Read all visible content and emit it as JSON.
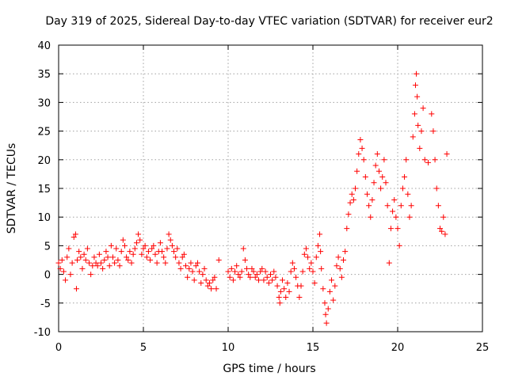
{
  "chart_data": {
    "type": "scatter",
    "title": "Day 319 of 2025, Sidereal Day-to-day VTEC variation (SDTVAR) for receiver eur2",
    "xlabel": "GPS time / hours",
    "ylabel": "SDTVAR / TECUs",
    "xlim": [
      0,
      25
    ],
    "ylim": [
      -10,
      40
    ],
    "xticks": [
      "0",
      "5",
      "10",
      "15",
      "20",
      "25"
    ],
    "yticks": [
      "-10",
      "-5",
      "0",
      "5",
      "10",
      "15",
      "20",
      "25",
      "30",
      "35",
      "40"
    ],
    "grid": true,
    "marker": "+",
    "color": "#ff0000",
    "series": [
      {
        "name": "eur2",
        "points": [
          [
            0.0,
            2.0
          ],
          [
            0.1,
            1.0
          ],
          [
            0.2,
            2.5
          ],
          [
            0.3,
            0.5
          ],
          [
            0.4,
            -1.0
          ],
          [
            0.5,
            3.0
          ],
          [
            0.6,
            4.5
          ],
          [
            0.7,
            0.0
          ],
          [
            0.8,
            2.0
          ],
          [
            0.9,
            6.5
          ],
          [
            1.0,
            7.0
          ],
          [
            1.05,
            -2.5
          ],
          [
            1.1,
            2.5
          ],
          [
            1.2,
            4.0
          ],
          [
            1.3,
            3.0
          ],
          [
            1.4,
            1.0
          ],
          [
            1.5,
            3.5
          ],
          [
            1.6,
            2.5
          ],
          [
            1.7,
            4.5
          ],
          [
            1.8,
            2.0
          ],
          [
            1.9,
            0.0
          ],
          [
            2.0,
            1.5
          ],
          [
            2.1,
            3.0
          ],
          [
            2.2,
            2.0
          ],
          [
            2.3,
            1.5
          ],
          [
            2.4,
            3.5
          ],
          [
            2.5,
            2.0
          ],
          [
            2.6,
            1.0
          ],
          [
            2.7,
            2.5
          ],
          [
            2.8,
            4.0
          ],
          [
            2.9,
            3.0
          ],
          [
            3.0,
            1.5
          ],
          [
            3.1,
            5.0
          ],
          [
            3.2,
            3.0
          ],
          [
            3.3,
            2.0
          ],
          [
            3.4,
            4.5
          ],
          [
            3.5,
            2.5
          ],
          [
            3.6,
            1.5
          ],
          [
            3.7,
            4.0
          ],
          [
            3.8,
            6.0
          ],
          [
            3.9,
            5.0
          ],
          [
            4.0,
            3.0
          ],
          [
            4.1,
            2.5
          ],
          [
            4.2,
            4.0
          ],
          [
            4.3,
            2.0
          ],
          [
            4.4,
            3.5
          ],
          [
            4.5,
            4.5
          ],
          [
            4.6,
            5.5
          ],
          [
            4.7,
            7.0
          ],
          [
            4.8,
            6.0
          ],
          [
            4.9,
            3.5
          ],
          [
            5.0,
            4.5
          ],
          [
            5.1,
            5.0
          ],
          [
            5.2,
            3.0
          ],
          [
            5.3,
            4.0
          ],
          [
            5.4,
            2.5
          ],
          [
            5.5,
            4.5
          ],
          [
            5.6,
            5.0
          ],
          [
            5.7,
            3.5
          ],
          [
            5.8,
            2.0
          ],
          [
            5.9,
            4.0
          ],
          [
            6.0,
            5.5
          ],
          [
            6.1,
            4.0
          ],
          [
            6.2,
            3.0
          ],
          [
            6.3,
            2.0
          ],
          [
            6.4,
            4.5
          ],
          [
            6.5,
            7.0
          ],
          [
            6.6,
            6.0
          ],
          [
            6.7,
            5.0
          ],
          [
            6.8,
            4.0
          ],
          [
            6.9,
            3.0
          ],
          [
            7.0,
            4.5
          ],
          [
            7.1,
            2.0
          ],
          [
            7.2,
            1.0
          ],
          [
            7.3,
            3.0
          ],
          [
            7.4,
            3.5
          ],
          [
            7.5,
            1.5
          ],
          [
            7.6,
            -0.5
          ],
          [
            7.7,
            1.0
          ],
          [
            7.8,
            2.0
          ],
          [
            7.9,
            0.5
          ],
          [
            8.0,
            -1.0
          ],
          [
            8.1,
            1.5
          ],
          [
            8.2,
            2.0
          ],
          [
            8.3,
            0.5
          ],
          [
            8.4,
            -1.5
          ],
          [
            8.5,
            0.0
          ],
          [
            8.6,
            1.0
          ],
          [
            8.7,
            -1.0
          ],
          [
            8.8,
            -2.0
          ],
          [
            8.9,
            -1.5
          ],
          [
            9.0,
            -2.5
          ],
          [
            9.1,
            -1.0
          ],
          [
            9.2,
            -0.5
          ],
          [
            9.3,
            -2.5
          ],
          [
            9.45,
            2.5
          ],
          [
            10.0,
            0.5
          ],
          [
            10.1,
            -0.5
          ],
          [
            10.2,
            1.0
          ],
          [
            10.3,
            -1.0
          ],
          [
            10.4,
            0.5
          ],
          [
            10.5,
            1.5
          ],
          [
            10.6,
            0.0
          ],
          [
            10.7,
            -0.5
          ],
          [
            10.8,
            0.5
          ],
          [
            10.9,
            4.5
          ],
          [
            11.0,
            2.5
          ],
          [
            11.1,
            1.0
          ],
          [
            11.2,
            0.0
          ],
          [
            11.3,
            -0.5
          ],
          [
            11.4,
            1.0
          ],
          [
            11.5,
            0.5
          ],
          [
            11.6,
            -0.5
          ],
          [
            11.7,
            0.0
          ],
          [
            11.8,
            -1.0
          ],
          [
            11.9,
            0.5
          ],
          [
            12.0,
            1.0
          ],
          [
            12.1,
            -1.0
          ],
          [
            12.2,
            0.5
          ],
          [
            12.3,
            -0.5
          ],
          [
            12.4,
            -1.5
          ],
          [
            12.5,
            0.0
          ],
          [
            12.6,
            -1.0
          ],
          [
            12.7,
            0.5
          ],
          [
            12.8,
            -0.5
          ],
          [
            12.9,
            -2.0
          ],
          [
            13.0,
            -4.0
          ],
          [
            13.05,
            -5.0
          ],
          [
            13.1,
            -3.0
          ],
          [
            13.2,
            -1.0
          ],
          [
            13.3,
            -2.5
          ],
          [
            13.4,
            -4.0
          ],
          [
            13.5,
            -1.5
          ],
          [
            13.6,
            -3.0
          ],
          [
            13.7,
            0.5
          ],
          [
            13.8,
            2.0
          ],
          [
            13.9,
            1.0
          ],
          [
            14.0,
            -0.5
          ],
          [
            14.1,
            -2.0
          ],
          [
            14.2,
            -4.0
          ],
          [
            14.3,
            -2.0
          ],
          [
            14.4,
            0.5
          ],
          [
            14.5,
            3.5
          ],
          [
            14.6,
            4.5
          ],
          [
            14.7,
            3.0
          ],
          [
            14.8,
            1.0
          ],
          [
            14.9,
            2.0
          ],
          [
            15.0,
            0.5
          ],
          [
            15.1,
            -1.5
          ],
          [
            15.2,
            3.0
          ],
          [
            15.3,
            5.0
          ],
          [
            15.4,
            7.0
          ],
          [
            15.45,
            4.0
          ],
          [
            15.5,
            1.0
          ],
          [
            15.6,
            -2.5
          ],
          [
            15.7,
            -5.0
          ],
          [
            15.75,
            -7.0
          ],
          [
            15.8,
            -8.5
          ],
          [
            15.9,
            -6.0
          ],
          [
            16.0,
            -3.0
          ],
          [
            16.1,
            -1.0
          ],
          [
            16.2,
            -4.5
          ],
          [
            16.3,
            -2.0
          ],
          [
            16.4,
            1.5
          ],
          [
            16.5,
            3.0
          ],
          [
            16.6,
            1.0
          ],
          [
            16.7,
            -0.5
          ],
          [
            16.8,
            2.5
          ],
          [
            16.9,
            4.0
          ],
          [
            17.0,
            8.0
          ],
          [
            17.1,
            10.5
          ],
          [
            17.2,
            12.5
          ],
          [
            17.3,
            14.0
          ],
          [
            17.4,
            13.0
          ],
          [
            17.5,
            15.0
          ],
          [
            17.6,
            18.0
          ],
          [
            17.7,
            21.0
          ],
          [
            17.8,
            23.5
          ],
          [
            17.9,
            22.0
          ],
          [
            18.0,
            20.0
          ],
          [
            18.1,
            17.0
          ],
          [
            18.2,
            14.0
          ],
          [
            18.3,
            12.0
          ],
          [
            18.4,
            10.0
          ],
          [
            18.5,
            13.0
          ],
          [
            18.6,
            16.0
          ],
          [
            18.7,
            19.0
          ],
          [
            18.8,
            21.0
          ],
          [
            18.9,
            18.0
          ],
          [
            19.0,
            15.0
          ],
          [
            19.1,
            17.0
          ],
          [
            19.2,
            20.0
          ],
          [
            19.3,
            16.0
          ],
          [
            19.4,
            12.0
          ],
          [
            19.5,
            2.0
          ],
          [
            19.6,
            8.0
          ],
          [
            19.7,
            11.0
          ],
          [
            19.8,
            13.0
          ],
          [
            19.9,
            10.0
          ],
          [
            20.0,
            8.0
          ],
          [
            20.1,
            5.0
          ],
          [
            20.2,
            12.0
          ],
          [
            20.3,
            15.0
          ],
          [
            20.4,
            17.0
          ],
          [
            20.5,
            20.0
          ],
          [
            20.6,
            14.0
          ],
          [
            20.7,
            10.0
          ],
          [
            20.8,
            12.0
          ],
          [
            20.9,
            24.0
          ],
          [
            21.0,
            28.0
          ],
          [
            21.05,
            33.0
          ],
          [
            21.1,
            35.0
          ],
          [
            21.15,
            31.0
          ],
          [
            21.2,
            26.0
          ],
          [
            21.3,
            22.0
          ],
          [
            21.4,
            25.0
          ],
          [
            21.5,
            29.0
          ],
          [
            21.6,
            20.0
          ],
          [
            21.8,
            19.5
          ],
          [
            22.0,
            28.0
          ],
          [
            22.1,
            25.0
          ],
          [
            22.2,
            20.0
          ],
          [
            22.3,
            15.0
          ],
          [
            22.4,
            12.0
          ],
          [
            22.5,
            8.0
          ],
          [
            22.6,
            7.5
          ],
          [
            22.7,
            10.0
          ],
          [
            22.8,
            7.0
          ],
          [
            22.9,
            21.0
          ]
        ]
      }
    ]
  }
}
